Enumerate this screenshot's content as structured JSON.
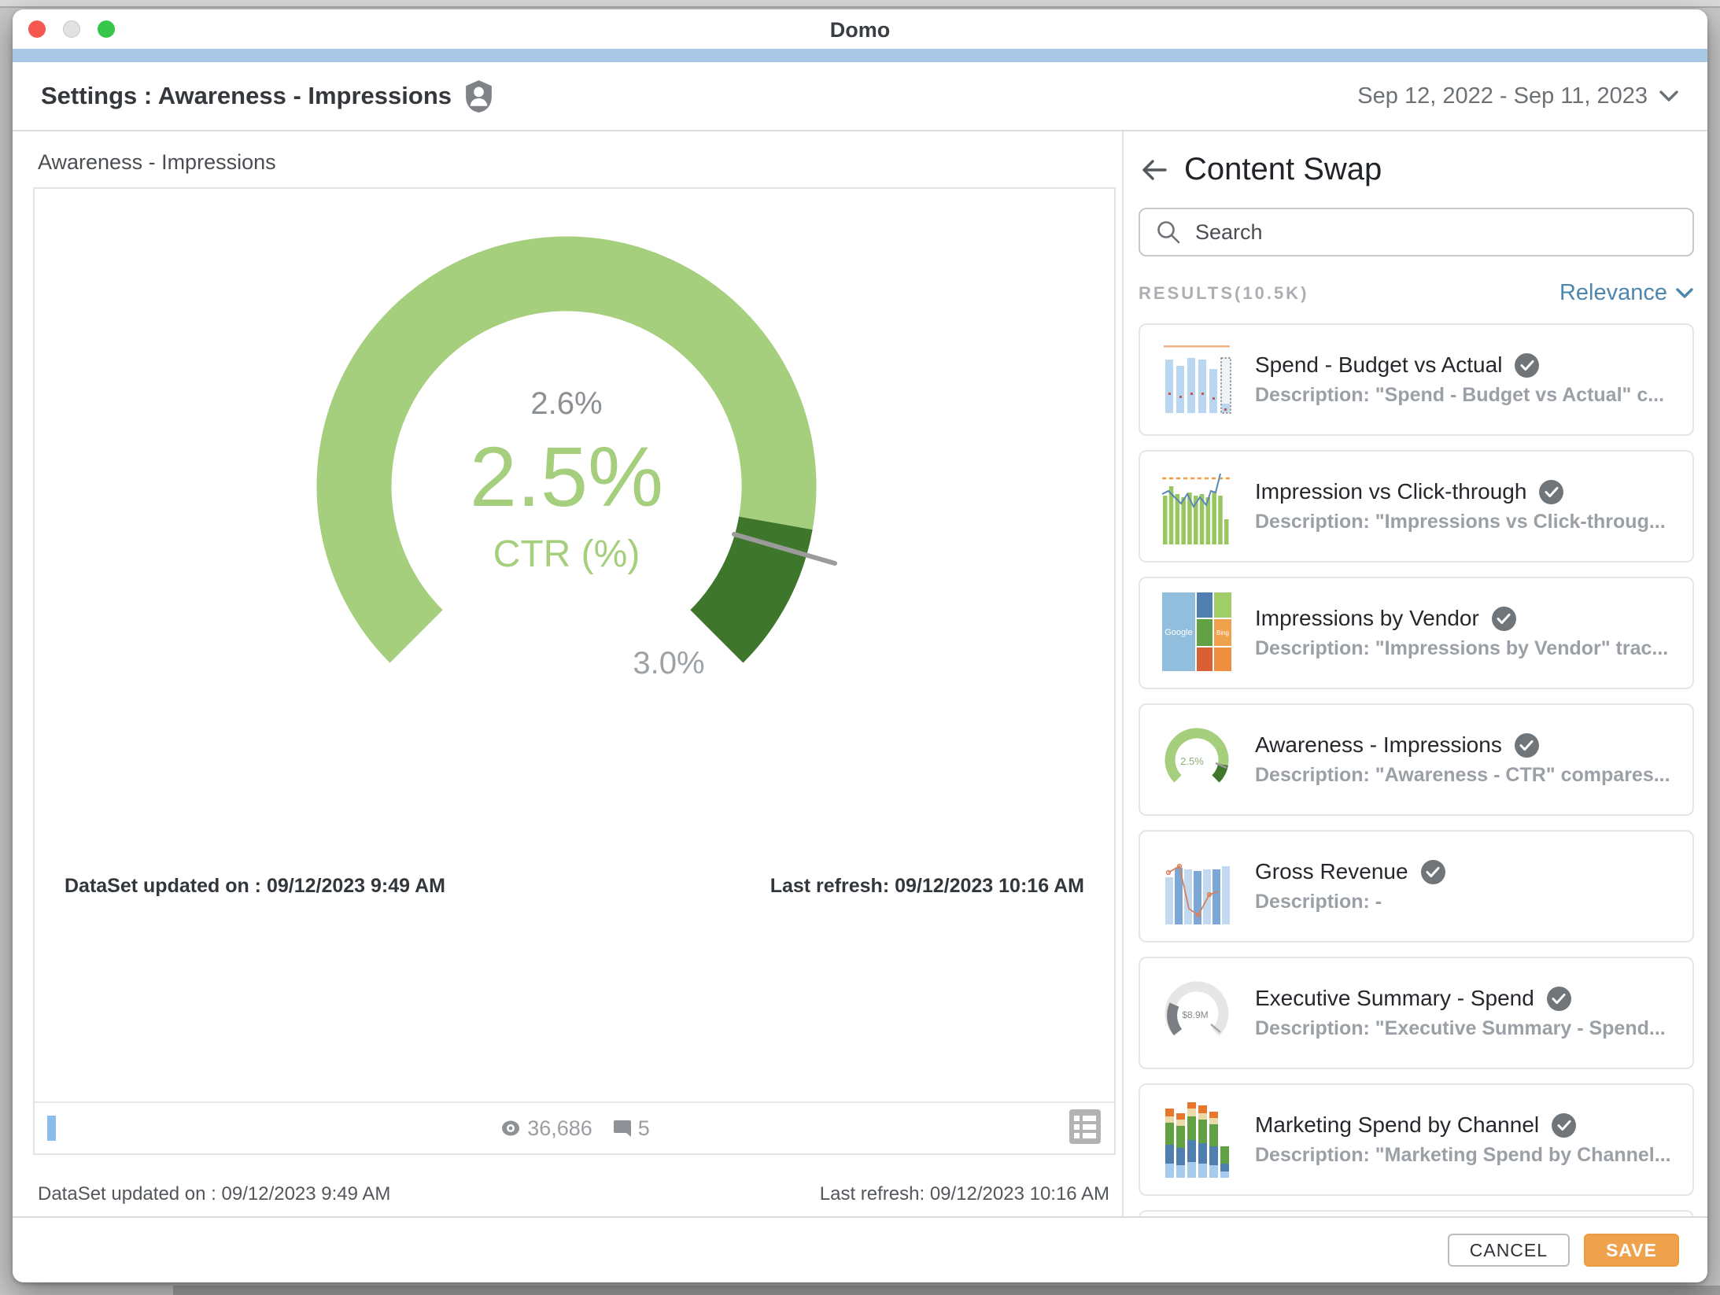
{
  "window": {
    "title": "Domo"
  },
  "header": {
    "title": "Settings : Awareness - Impressions",
    "date_range": "Sep 12, 2022 - Sep 11, 2023"
  },
  "main": {
    "card_label": "Awareness - Impressions",
    "dataset_updated": "DataSet updated on : 09/12/2023 9:49 AM",
    "last_refresh": "Last refresh: 09/12/2023 10:16 AM",
    "views": "36,686",
    "comments": "5",
    "below_dataset_updated": "DataSet updated on : 09/12/2023 9:49 AM",
    "below_last_refresh": "Last refresh: 09/12/2023 10:16 AM"
  },
  "chart_data": {
    "type": "gauge",
    "title": "Awareness - Impressions",
    "value": 2.5,
    "value_label": "2.5%",
    "unit_label": "CTR (%)",
    "needle_value": 2.6,
    "marker_label": "2.6%",
    "min": 0,
    "max": 3.0,
    "max_label": "3.0%",
    "colors": {
      "fill": "#a5ce7d",
      "remainder": "#3e762c",
      "needle": "#9b9b9b",
      "value_text": "#a5ce7d",
      "tick_text": "#8b9094"
    }
  },
  "panel": {
    "title": "Content Swap",
    "search_placeholder": "Search",
    "results_label": "RESULTS(10.5K)",
    "sort_label": "Relevance",
    "items": [
      {
        "title": "Spend - Budget vs Actual",
        "description": "Description: \"Spend - Budget vs Actual\" c...",
        "thumb": "budget-bars",
        "selected": true
      },
      {
        "title": "Impression vs Click-through",
        "description": "Description: \"Impressions vs Click-throug...",
        "thumb": "green-bars-line",
        "selected": true
      },
      {
        "title": "Impressions by Vendor",
        "description": "Description: \"Impressions by Vendor\" trac...",
        "thumb": "treemap",
        "selected": true
      },
      {
        "title": "Awareness - Impressions",
        "description": "Description: \"Awareness - CTR\" compares...",
        "thumb": "green-gauge",
        "selected": true
      },
      {
        "title": "Gross Revenue",
        "description": "Description: -",
        "thumb": "blue-bars-line",
        "selected": true
      },
      {
        "title": "Executive Summary - Spend",
        "description": "Description: \"Executive Summary - Spend...",
        "thumb": "gray-gauge",
        "selected": true
      },
      {
        "title": "Marketing Spend by Channel",
        "description": "Description: \"Marketing Spend by Channel...",
        "thumb": "stacked-bars",
        "selected": true
      }
    ]
  },
  "footer": {
    "cancel": "CANCEL",
    "save": "SAVE"
  },
  "colors": {
    "titlebar_accent": "#a9c8e6",
    "link_blue": "#4e86ac",
    "save_orange": "#f0a14b",
    "gauge_light_green": "#a5ce7d",
    "gauge_dark_green": "#3e762c"
  }
}
